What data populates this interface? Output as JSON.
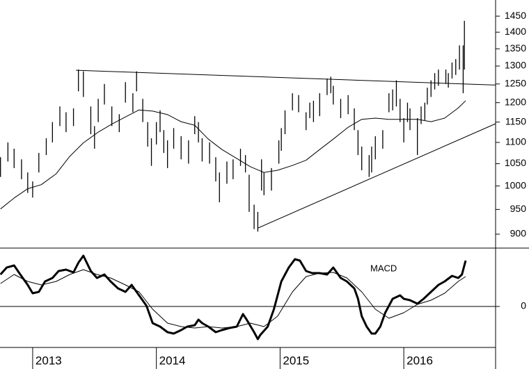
{
  "chart_data": [
    {
      "type": "ohlc",
      "log_scale": true,
      "grid": false,
      "color": "#000000",
      "xlim": [
        2012.736,
        2016.742
      ],
      "ylim": [
        873,
        1502
      ],
      "yticks": [
        900,
        950,
        1000,
        1050,
        1100,
        1150,
        1200,
        1250,
        1300,
        1350,
        1400,
        1450
      ],
      "x": [
        2012.74,
        2012.8,
        2012.85,
        2012.91,
        2012.96,
        2013.0,
        2013.05,
        2013.11,
        2013.16,
        2013.22,
        2013.27,
        2013.33,
        2013.37,
        2013.41,
        2013.47,
        2013.5,
        2013.53,
        2013.58,
        2013.64,
        2013.7,
        2013.75,
        2013.81,
        2013.84,
        2013.89,
        2013.93,
        2013.96,
        2014.0,
        2014.03,
        2014.06,
        2014.09,
        2014.14,
        2014.2,
        2014.26,
        2014.31,
        2014.34,
        2014.37,
        2014.43,
        2014.48,
        2014.51,
        2014.57,
        2014.62,
        2014.68,
        2014.72,
        2014.75,
        2014.79,
        2014.82,
        2014.85,
        2014.87,
        2014.93,
        2014.99,
        2015.01,
        2015.04,
        2015.1,
        2015.15,
        2015.21,
        2015.24,
        2015.27,
        2015.32,
        2015.38,
        2015.41,
        2015.43,
        2015.49,
        2015.55,
        2015.6,
        2015.63,
        2015.66,
        2015.72,
        2015.74,
        2015.77,
        2015.83,
        2015.88,
        2015.91,
        2015.94,
        2015.97,
        2016.0,
        2016.03,
        2016.05,
        2016.11,
        2016.14,
        2016.17,
        2016.19,
        2016.22,
        2016.25,
        2016.28,
        2016.34,
        2016.36,
        2016.39,
        2016.42,
        2016.45,
        2016.48,
        2016.49
      ],
      "high": [
        1065,
        1100,
        1085,
        1060,
        1030,
        1010,
        1075,
        1110,
        1150,
        1190,
        1175,
        1185,
        1290,
        1285,
        1190,
        1140,
        1210,
        1250,
        1190,
        1170,
        1255,
        1225,
        1285,
        1210,
        1150,
        1110,
        1150,
        1180,
        1130,
        1105,
        1135,
        1115,
        1105,
        1165,
        1150,
        1110,
        1100,
        1065,
        1030,
        1055,
        1060,
        1085,
        1070,
        1025,
        960,
        945,
        1060,
        1030,
        1040,
        1105,
        1135,
        1180,
        1225,
        1220,
        1175,
        1200,
        1205,
        1225,
        1265,
        1270,
        1245,
        1210,
        1220,
        1185,
        1130,
        1090,
        1070,
        1090,
        1115,
        1130,
        1225,
        1235,
        1260,
        1210,
        1160,
        1200,
        1185,
        1160,
        1190,
        1200,
        1240,
        1260,
        1280,
        1290,
        1290,
        1280,
        1310,
        1320,
        1360,
        1360,
        1435
      ],
      "low": [
        1020,
        1055,
        1040,
        1015,
        985,
        975,
        1030,
        1070,
        1100,
        1140,
        1125,
        1140,
        1230,
        1215,
        1120,
        1085,
        1150,
        1195,
        1140,
        1125,
        1200,
        1175,
        1230,
        1150,
        1090,
        1045,
        1095,
        1125,
        1075,
        1040,
        1085,
        1060,
        1050,
        1120,
        1100,
        1055,
        1050,
        1010,
        965,
        1005,
        1015,
        1045,
        1030,
        945,
        910,
        905,
        990,
        980,
        990,
        1050,
        1080,
        1120,
        1180,
        1175,
        1130,
        1160,
        1150,
        1165,
        1220,
        1225,
        1195,
        1160,
        1170,
        1130,
        1070,
        1035,
        1020,
        1030,
        1060,
        1085,
        1175,
        1180,
        1190,
        1150,
        1100,
        1150,
        1130,
        1070,
        1145,
        1155,
        1195,
        1215,
        1235,
        1245,
        1250,
        1240,
        1265,
        1275,
        1290,
        1225,
        1290
      ],
      "series": [
        {
          "color": "#000000",
          "width": 1,
          "x": [
            2012.74,
            2012.85,
            2012.96,
            2013.07,
            2013.19,
            2013.3,
            2013.41,
            2013.53,
            2013.64,
            2013.75,
            2013.86,
            2013.97,
            2014.09,
            2014.2,
            2014.31,
            2014.42,
            2014.53,
            2014.65,
            2014.76,
            2014.87,
            2014.98,
            2015.1,
            2015.21,
            2015.32,
            2015.43,
            2015.55,
            2015.66,
            2015.77,
            2015.88,
            2016.0,
            2016.11,
            2016.22,
            2016.33,
            2016.44,
            2016.5
          ],
          "values": [
            951,
            974,
            994,
            1003,
            1027,
            1067,
            1099,
            1125,
            1145,
            1163,
            1181,
            1178,
            1169,
            1151,
            1142,
            1108,
            1083,
            1062,
            1043,
            1030,
            1035,
            1046,
            1058,
            1083,
            1108,
            1137,
            1157,
            1160,
            1157,
            1157,
            1157,
            1151,
            1160,
            1186,
            1205
          ]
        },
        {
          "color": "#000000",
          "width": 1,
          "x": [
            2013.35,
            2016.742
          ],
          "values": [
            1288,
            1247
          ]
        },
        {
          "color": "#000000",
          "width": 1,
          "x": [
            2014.82,
            2016.742
          ],
          "values": [
            912,
            1146
          ]
        }
      ]
    },
    {
      "type": "line",
      "grid": true,
      "annotation": "MACD",
      "xlim": [
        2012.736,
        2016.742
      ],
      "xticks": [
        2013,
        2014,
        2015,
        2016
      ],
      "ylim": [
        -59,
        84
      ],
      "yticks": [
        0
      ],
      "series": [
        {
          "color": "#000000",
          "width": 3,
          "x": [
            2012.74,
            2012.79,
            2012.85,
            2012.9,
            2012.96,
            2013.0,
            2013.05,
            2013.1,
            2013.16,
            2013.21,
            2013.27,
            2013.33,
            2013.37,
            2013.41,
            2013.47,
            2013.52,
            2013.58,
            2013.63,
            2013.69,
            2013.75,
            2013.8,
            2013.86,
            2013.92,
            2013.97,
            2014.03,
            2014.09,
            2014.14,
            2014.2,
            2014.25,
            2014.31,
            2014.34,
            2014.37,
            2014.42,
            2014.48,
            2014.53,
            2014.59,
            2014.65,
            2014.7,
            2014.73,
            2014.79,
            2014.82,
            2014.84,
            2014.9,
            2014.95,
            2015.01,
            2015.07,
            2015.12,
            2015.16,
            2015.21,
            2015.26,
            2015.32,
            2015.38,
            2015.43,
            2015.49,
            2015.54,
            2015.6,
            2015.63,
            2015.66,
            2015.7,
            2015.74,
            2015.77,
            2015.81,
            2015.85,
            2015.91,
            2015.97,
            2016.0,
            2016.05,
            2016.11,
            2016.16,
            2016.22,
            2016.28,
            2016.33,
            2016.39,
            2016.44,
            2016.47,
            2016.5
          ],
          "values": [
            46,
            56,
            59,
            46,
            31,
            19,
            21,
            36,
            41,
            51,
            53,
            49,
            63,
            73,
            51,
            41,
            46,
            36,
            26,
            21,
            31,
            16,
            1,
            -24,
            -29,
            -37,
            -39,
            -34,
            -29,
            -27,
            -19,
            -24,
            -29,
            -37,
            -34,
            -31,
            -29,
            -11,
            -19,
            -37,
            -47,
            -41,
            -29,
            -4,
            36,
            56,
            68,
            66,
            51,
            48,
            48,
            46,
            56,
            41,
            36,
            26,
            11,
            -14,
            -29,
            -39,
            -39,
            -29,
            -9,
            11,
            16,
            11,
            9,
            4,
            11,
            21,
            31,
            36,
            44,
            41,
            46,
            66
          ]
        },
        {
          "color": "#000000",
          "width": 1,
          "x": [
            2012.74,
            2012.85,
            2012.96,
            2013.07,
            2013.19,
            2013.3,
            2013.41,
            2013.52,
            2013.63,
            2013.75,
            2013.86,
            2013.97,
            2014.09,
            2014.2,
            2014.31,
            2014.42,
            2014.53,
            2014.65,
            2014.76,
            2014.87,
            2014.98,
            2015.1,
            2015.21,
            2015.32,
            2015.43,
            2015.54,
            2015.66,
            2015.77,
            2015.88,
            2016.0,
            2016.11,
            2016.22,
            2016.33,
            2016.44,
            2016.5
          ],
          "values": [
            33,
            46,
            36,
            31,
            36,
            46,
            53,
            46,
            41,
            31,
            21,
            -4,
            -24,
            -29,
            -31,
            -29,
            -31,
            -29,
            -24,
            -29,
            -14,
            21,
            43,
            48,
            49,
            41,
            21,
            -4,
            -17,
            -9,
            3,
            9,
            19,
            36,
            43
          ]
        }
      ]
    }
  ]
}
